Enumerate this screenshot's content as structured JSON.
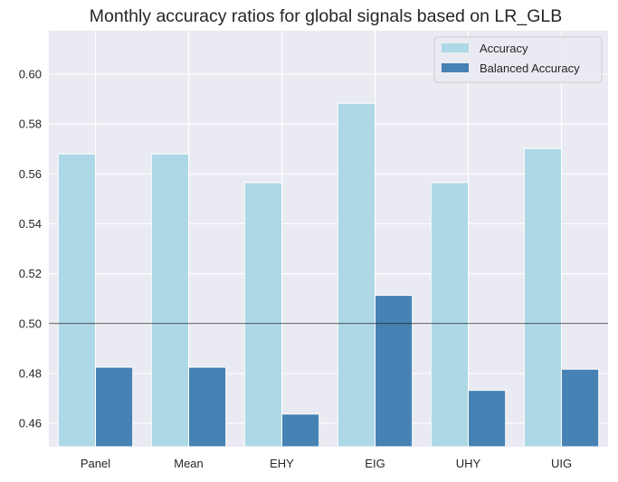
{
  "chart_data": {
    "type": "bar",
    "title": "Monthly accuracy ratios for global signals based on LR_GLB",
    "xlabel": "",
    "ylabel": "",
    "categories": [
      "Panel",
      "Mean",
      "EHY",
      "EIG",
      "UHY",
      "UIG"
    ],
    "series": [
      {
        "name": "Accuracy",
        "color": "#add8e6",
        "values": [
          0.568,
          0.568,
          0.5565,
          0.5883,
          0.5565,
          0.5702
        ]
      },
      {
        "name": "Balanced Accuracy",
        "color": "#4682b4",
        "values": [
          0.4825,
          0.4825,
          0.4637,
          0.5113,
          0.4732,
          0.4817
        ]
      }
    ],
    "ylim": [
      0.4506,
      0.6174
    ],
    "yticks": [
      0.46,
      0.48,
      0.5,
      0.52,
      0.54,
      0.56,
      0.58,
      0.6
    ],
    "ytick_labels": [
      "0.46",
      "0.48",
      "0.50",
      "0.52",
      "0.54",
      "0.56",
      "0.58",
      "0.60"
    ],
    "reference_line": {
      "y": 0.5,
      "color": "#262626"
    },
    "grid": true,
    "legend": {
      "placement": "top-right",
      "entries": [
        "Accuracy",
        "Balanced Accuracy"
      ]
    },
    "background": "#eaeaf2"
  }
}
